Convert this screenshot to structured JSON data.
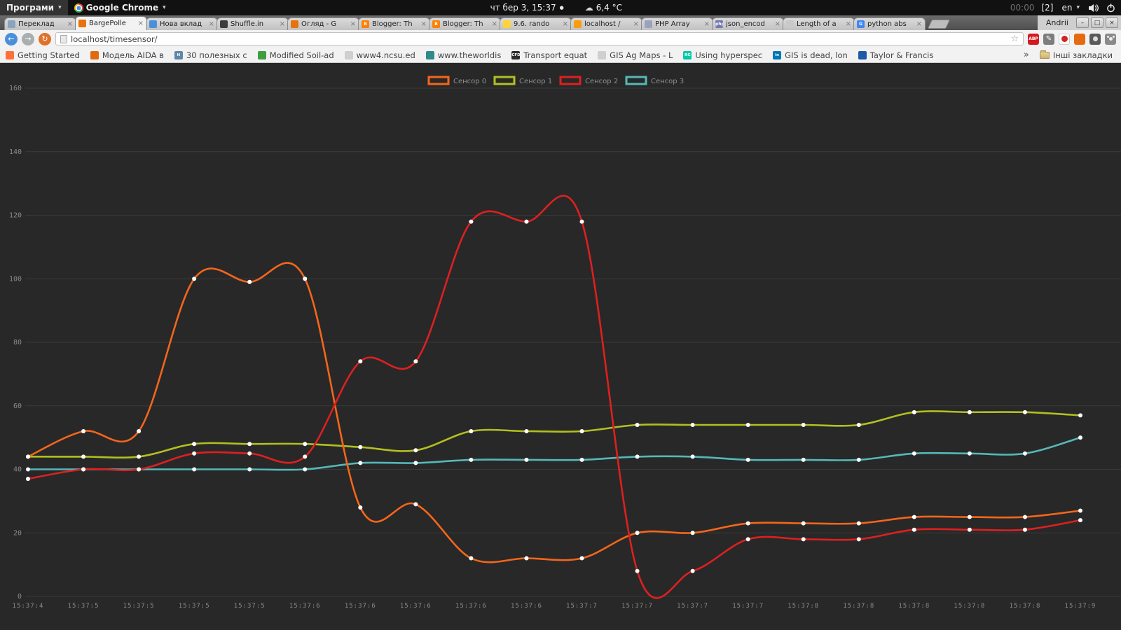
{
  "panel": {
    "apps_menu": "Програми",
    "active_app": "Google Chrome",
    "clock": "чт бер  3, 15:37",
    "weather": "6,4 °C",
    "timer": "00:00",
    "window_count": "[2]",
    "keyboard_layout": "en"
  },
  "icons": {
    "caret": "▾",
    "clock_dot": "●",
    "weather": "☁",
    "back": "←",
    "forward": "→",
    "reload": "↻",
    "star": "☆",
    "pen": "✎",
    "close_tab": "×"
  },
  "browser": {
    "profile": "Andrii",
    "address": "localhost/timesensor/",
    "window_controls": {
      "minimize": "–",
      "maximize": "□",
      "close": "×"
    },
    "tabs": [
      {
        "title": "Переклад",
        "icon_color": "#8aa4bf",
        "icon_letter": ""
      },
      {
        "title": "BargePolle",
        "icon_color": "#e8720c",
        "icon_letter": "",
        "active": true
      },
      {
        "title": "Нова вклад",
        "icon_color": "#4a90d9",
        "icon_letter": ""
      },
      {
        "title": "Shuffle.in",
        "icon_color": "#3c3c3c",
        "icon_letter": ""
      },
      {
        "title": "Огляд - G",
        "icon_color": "#e8720c",
        "icon_letter": ""
      },
      {
        "title": "Blogger: Th",
        "icon_color": "#ff8000",
        "icon_letter": "B"
      },
      {
        "title": "Blogger: Th",
        "icon_color": "#ff8000",
        "icon_letter": "B"
      },
      {
        "title": "9.6. rando",
        "icon_color": "#ffd43b",
        "icon_letter": ""
      },
      {
        "title": "localhost /",
        "icon_color": "#f89d0e",
        "icon_letter": ""
      },
      {
        "title": "PHP Array",
        "icon_color": "#9aa2c0",
        "icon_letter": ""
      },
      {
        "title": "json_encod",
        "icon_color": "#7377ad",
        "icon_letter": "php"
      },
      {
        "title": "Length of a",
        "icon_color": "#c9c9c9",
        "icon_letter": ""
      },
      {
        "title": "python abs",
        "icon_color": "#4285f4",
        "icon_letter": "G"
      }
    ],
    "bookmarks": [
      {
        "label": "Getting Started",
        "icon_color": "#ff7139",
        "icon_letter": ""
      },
      {
        "label": "Модель AIDA в",
        "icon_color": "#e06a10",
        "icon_letter": ""
      },
      {
        "label": "30 полезных с",
        "icon_color": "#5e87a8",
        "icon_letter": "H"
      },
      {
        "label": "Modified Soil-ad",
        "icon_color": "#3f9e3f",
        "icon_letter": ""
      },
      {
        "label": "www4.ncsu.ed",
        "icon_color": "#cfcfcf",
        "icon_letter": ""
      },
      {
        "label": "www.theworldis",
        "icon_color": "#2e8b8b",
        "icon_letter": ""
      },
      {
        "label": "Transport equat",
        "icon_color": "#2b2b2b",
        "icon_letter": "CFD"
      },
      {
        "label": "GIS Ag Maps - L",
        "icon_color": "#cfcfcf",
        "icon_letter": ""
      },
      {
        "label": "Using hyperspec",
        "icon_color": "#00c9a7",
        "icon_letter": "RG"
      },
      {
        "label": "GIS is dead, lon",
        "icon_color": "#0077b5",
        "icon_letter": "in"
      },
      {
        "label": "Taylor & Francis",
        "icon_color": "#1d5aa8",
        "icon_letter": ""
      }
    ],
    "bookmarks_overflow": "»",
    "other_bookmarks": "Інші закладки"
  },
  "chart_data": {
    "type": "line",
    "x_labels": [
      "15:37:4",
      "15:37:5",
      "15:37:5",
      "15:37:5",
      "15:37:5",
      "15:37:6",
      "15:37:6",
      "15:37:6",
      "15:37:6",
      "15:37:6",
      "15:37:7",
      "15:37:7",
      "15:37:7",
      "15:37:7",
      "15:37:8",
      "15:37:8",
      "15:37:8",
      "15:37:8",
      "15:37:8",
      "15:37:9"
    ],
    "ylim": [
      0,
      160
    ],
    "y_ticks": [
      0,
      20,
      40,
      60,
      80,
      100,
      120,
      140,
      160
    ],
    "grid": "horizontal",
    "legend_position": "top-center",
    "point_markers": true,
    "background": "#282828",
    "grid_color": "#3a3a3a",
    "tick_color": "#8a8a8a",
    "series": [
      {
        "name": "Сенсор 0",
        "color": "#f4661b",
        "values": [
          44,
          52,
          52,
          100,
          99,
          100,
          28,
          29,
          12,
          12,
          12,
          20,
          20,
          23,
          23,
          23,
          25,
          25,
          25,
          27
        ]
      },
      {
        "name": "Сенсор 1",
        "color": "#b3bf20",
        "values": [
          44,
          44,
          44,
          48,
          48,
          48,
          47,
          46,
          52,
          52,
          52,
          54,
          54,
          54,
          54,
          54,
          58,
          58,
          58,
          57
        ]
      },
      {
        "name": "Сенсор 2",
        "color": "#dd2020",
        "values": [
          37,
          40,
          40,
          45,
          45,
          44,
          74,
          74,
          118,
          118,
          118,
          8,
          8,
          18,
          18,
          18,
          21,
          21,
          21,
          24
        ]
      },
      {
        "name": "Сенсор 3",
        "color": "#55b8b8",
        "values": [
          40,
          40,
          40,
          40,
          40,
          40,
          42,
          42,
          43,
          43,
          43,
          44,
          44,
          43,
          43,
          43,
          45,
          45,
          45,
          50
        ]
      }
    ]
  }
}
